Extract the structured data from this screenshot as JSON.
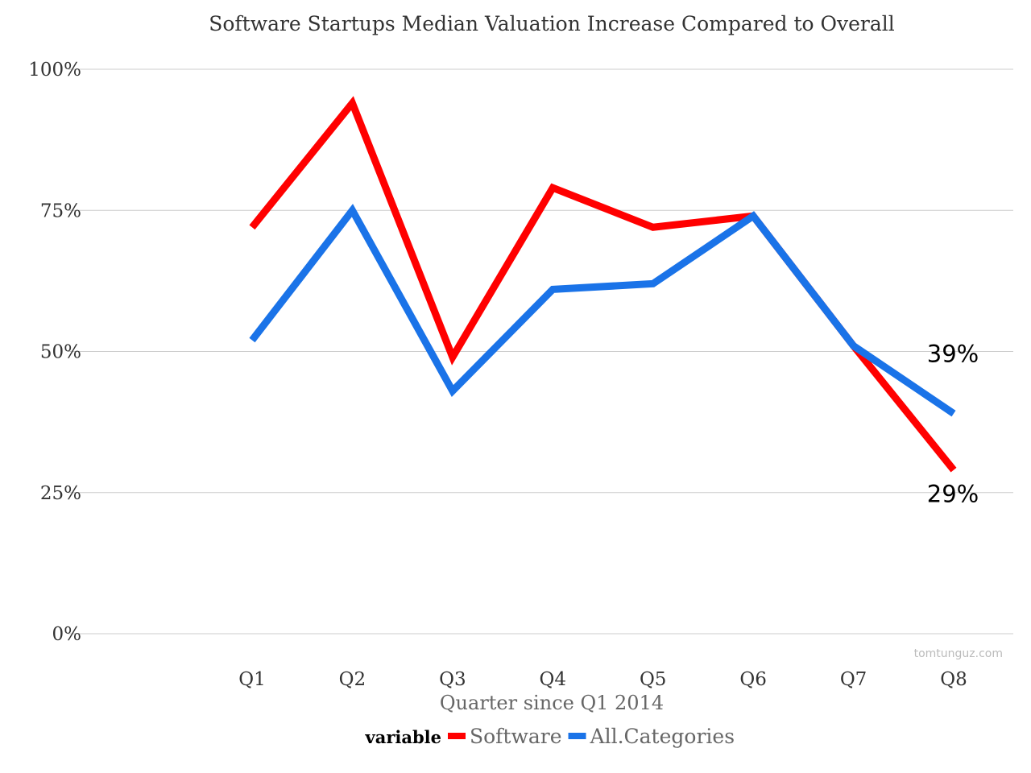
{
  "chart_data": {
    "type": "line",
    "title": "Software Startups Median Valuation Increase Compared to Overall",
    "xlabel": "Quarter since Q1 2014",
    "ylabel": "",
    "categories": [
      "Q1",
      "Q2",
      "Q3",
      "Q4",
      "Q5",
      "Q6",
      "Q7",
      "Q8"
    ],
    "ylim": [
      0,
      100
    ],
    "yticks": [
      0,
      25,
      50,
      75,
      100
    ],
    "ytick_labels": [
      "0%",
      "25%",
      "50%",
      "75%",
      "100%"
    ],
    "grid": true,
    "legend": {
      "title": "variable",
      "placement": "bottom"
    },
    "series": [
      {
        "name": "Software",
        "color": "#ff0000",
        "values": [
          72,
          94,
          49,
          79,
          72,
          74,
          51,
          29
        ]
      },
      {
        "name": "All.Categories",
        "color": "#1a73e8",
        "values": [
          52,
          75,
          43,
          61,
          62,
          74,
          51,
          39
        ]
      }
    ],
    "annotations": [
      {
        "text": "39%",
        "series": "All.Categories",
        "category": "Q8"
      },
      {
        "text": "29%",
        "series": "Software",
        "category": "Q8"
      }
    ],
    "watermark": "tomtunguz.com"
  }
}
